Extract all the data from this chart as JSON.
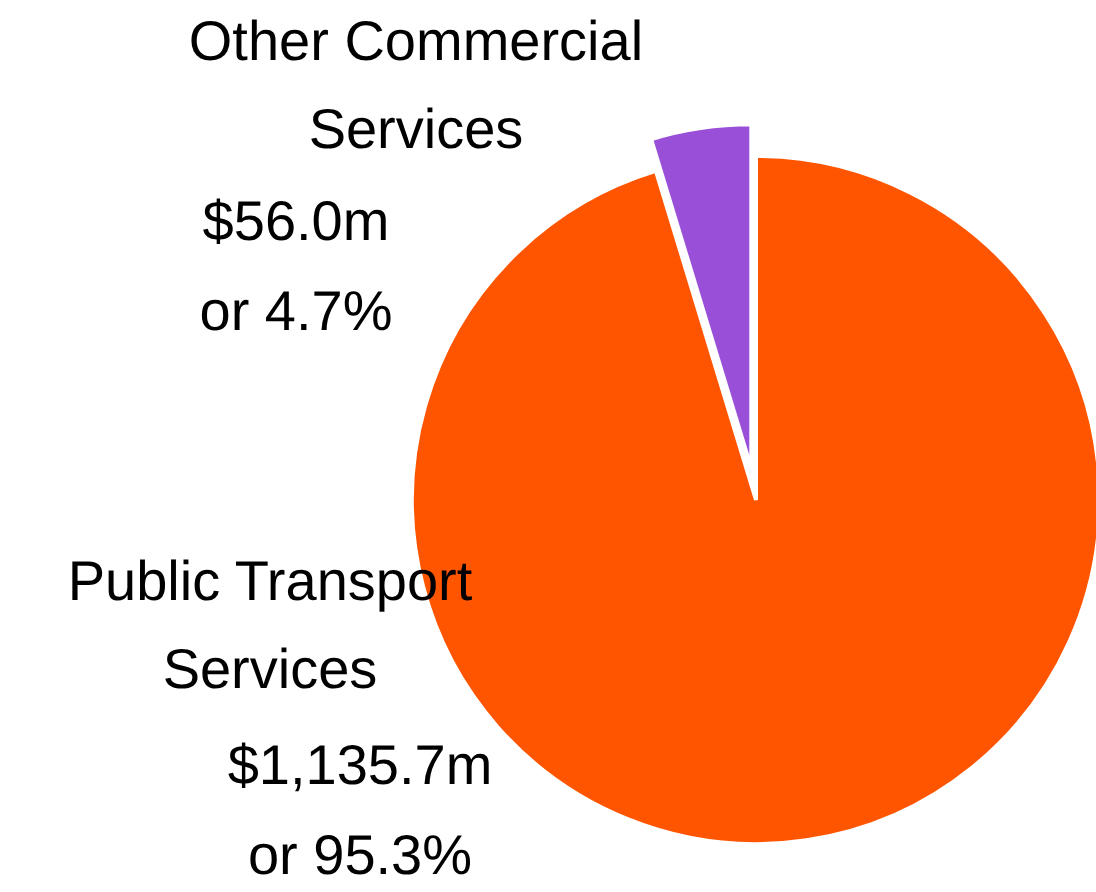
{
  "chart_data": {
    "type": "pie",
    "categories": [
      "Public Transport Services",
      "Other Commercial Services"
    ],
    "values": [
      95.3,
      4.7
    ],
    "colors": [
      "#ff5500",
      "#9a4fd8"
    ],
    "value_labels": [
      "$1,135.7m\nor 95.3%",
      "$56.0m\nor 4.7%"
    ]
  }
}
